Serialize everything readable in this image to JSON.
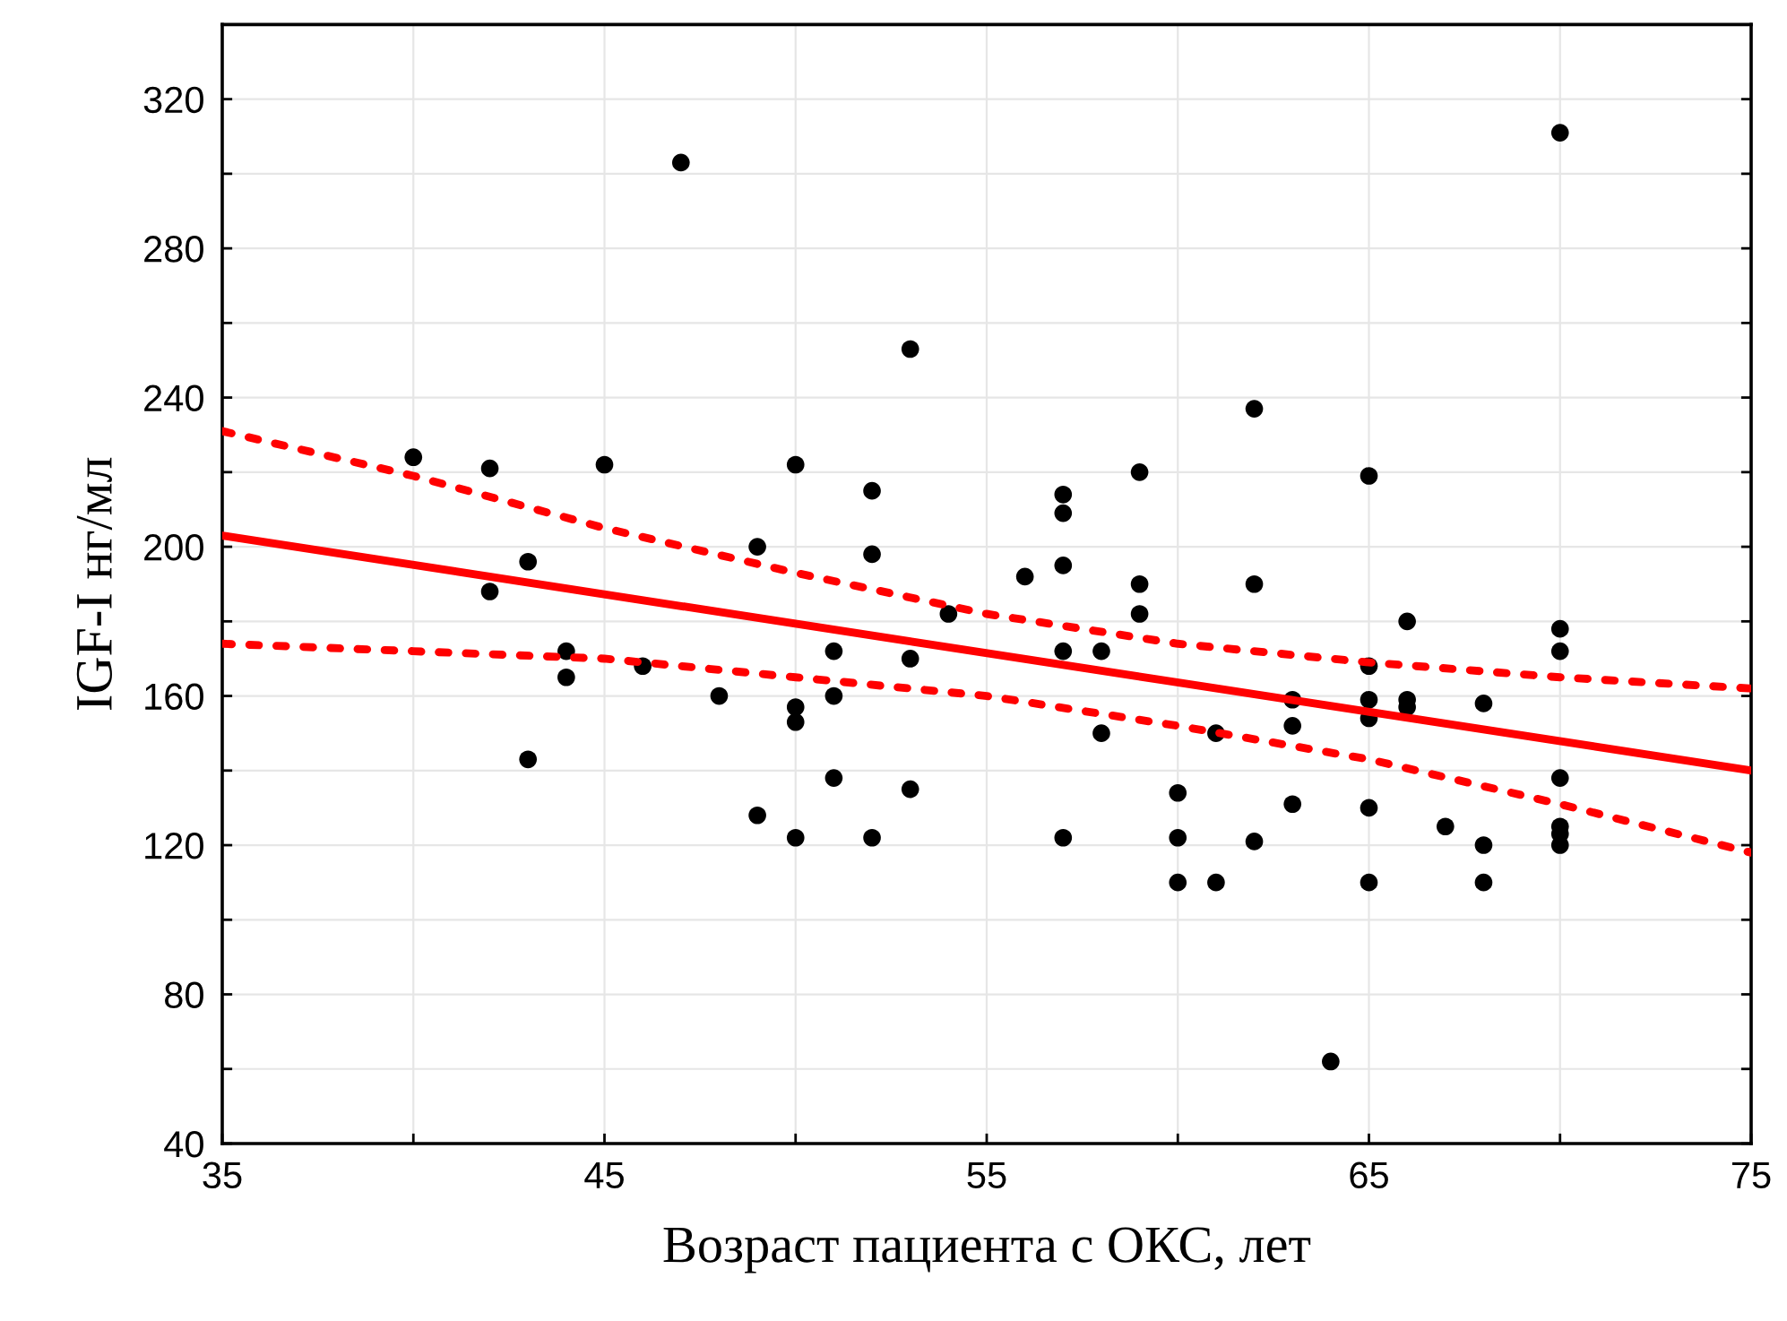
{
  "chart_data": {
    "type": "scatter",
    "xlabel": "Возраст пациента с ОКС, лет",
    "ylabel": "IGF-I нг/мл",
    "xlim": [
      35,
      75
    ],
    "ylim": [
      40,
      340
    ],
    "xticks": [
      35,
      {
        "value": 40,
        "label": null
      },
      45,
      {
        "value": 50,
        "label": null
      },
      55,
      {
        "value": 60,
        "label": null
      },
      65,
      {
        "value": 70,
        "label": null
      },
      75
    ],
    "yticks": [
      40,
      {
        "value": 60,
        "label": null
      },
      80,
      {
        "value": 100,
        "label": null
      },
      120,
      {
        "value": 140,
        "label": null
      },
      160,
      {
        "value": 180,
        "label": null
      },
      200,
      {
        "value": 220,
        "label": null
      },
      240,
      {
        "value": 260,
        "label": null
      },
      280,
      {
        "value": 300,
        "label": null
      },
      320,
      {
        "value": 340,
        "label": null
      }
    ],
    "grid": true,
    "marker": "circle",
    "series": [
      {
        "color": "#000000",
        "x": [
          40,
          42,
          45,
          50,
          53,
          49,
          52,
          52,
          43,
          42,
          54,
          44,
          44,
          46,
          48,
          50,
          50,
          51,
          51,
          53,
          43,
          51,
          53,
          49,
          50,
          52,
          62,
          59,
          65,
          57,
          57,
          56,
          57,
          59,
          59,
          62,
          66,
          70,
          70,
          57,
          58,
          65,
          63,
          65,
          66,
          66,
          65,
          68,
          58,
          61,
          63,
          70,
          60,
          63,
          65,
          67,
          70,
          70,
          70,
          68,
          57,
          60,
          62,
          60,
          61,
          65,
          68,
          64,
          47,
          70
        ],
        "values": [
          224,
          221,
          222,
          222,
          253,
          200,
          215,
          198,
          196,
          188,
          182,
          172,
          165,
          168,
          160,
          157,
          153,
          172,
          160,
          170,
          143,
          138,
          135,
          128,
          122,
          122,
          237,
          220,
          219,
          214,
          209,
          192,
          195,
          190,
          182,
          190,
          180,
          178,
          172,
          172,
          172,
          168,
          159,
          159,
          159,
          157,
          154,
          158,
          150,
          150,
          152,
          138,
          134,
          131,
          130,
          125,
          125,
          123,
          120,
          120,
          122,
          122,
          121,
          110,
          110,
          110,
          110,
          62,
          303,
          311
        ]
      },
      {
        "type": "line",
        "color": "#ff0000",
        "line_style": "solid",
        "marker": "none",
        "x": [
          35,
          75
        ],
        "values": [
          203,
          140
        ]
      },
      {
        "type": "line",
        "color": "#ff0000",
        "line_style": "dotted",
        "marker": "none",
        "x": [
          35,
          40,
          45,
          50,
          55,
          60,
          65,
          70,
          75
        ],
        "values": [
          231,
          219,
          205,
          193,
          182,
          174,
          169,
          165,
          162
        ]
      },
      {
        "type": "line",
        "color": "#ff0000",
        "line_style": "dotted",
        "marker": "none",
        "x": [
          35,
          40,
          45,
          50,
          55,
          60,
          65,
          70,
          75
        ],
        "values": [
          174,
          172,
          170,
          165,
          160,
          152,
          143,
          131,
          118
        ]
      }
    ]
  }
}
